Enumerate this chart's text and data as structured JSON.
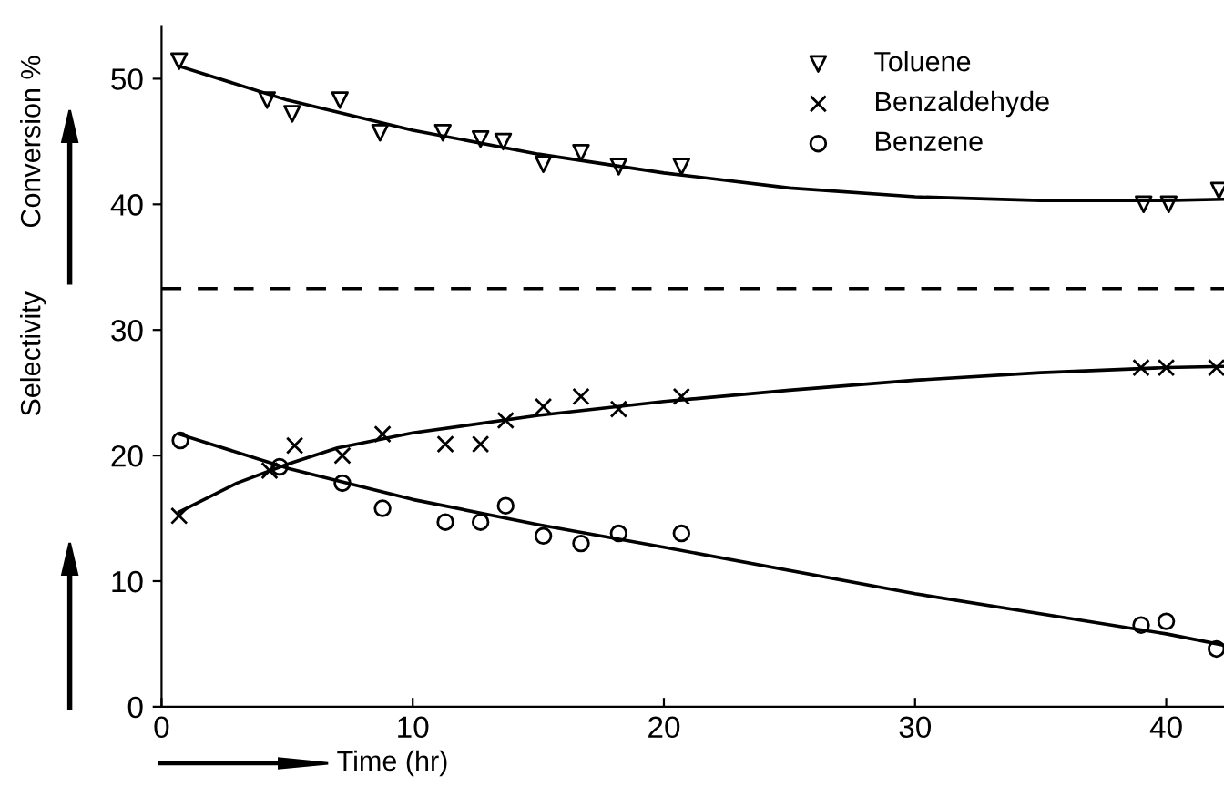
{
  "chart_data": {
    "type": "scatter",
    "xlabel": "Time (hr)",
    "ylabel": "Selectivity",
    "annotations": [
      "Conversion %"
    ],
    "xlim": [
      0,
      42.3
    ],
    "ylim": [
      0,
      54.2
    ],
    "xticks": [
      0,
      10,
      20,
      30,
      40
    ],
    "yticks": [
      0,
      10,
      20,
      30,
      40,
      50
    ],
    "grid": false,
    "legend": "top right",
    "ref_lines": [
      {
        "axis": "y",
        "value": 33.3,
        "color": "#000000",
        "line_style": "dashed"
      }
    ],
    "series": [
      {
        "name": "Toluene",
        "marker": "triangle",
        "color": "#000000",
        "x": [
          0.7,
          4.2,
          5.2,
          7.1,
          8.7,
          11.2,
          12.7,
          13.6,
          15.2,
          16.7,
          18.2,
          20.7,
          39.1,
          40.1,
          42.1
        ],
        "values": [
          51.4,
          48.3,
          47.2,
          48.3,
          45.7,
          45.7,
          45.2,
          45.0,
          43.2,
          44.1,
          43.0,
          43.0,
          40.0,
          40.0,
          41.1
        ]
      },
      {
        "name": "Benzaldehyde",
        "marker": "cross",
        "color": "#000000",
        "x": [
          0.7,
          4.3,
          5.3,
          7.2,
          8.8,
          11.3,
          12.7,
          13.7,
          15.2,
          16.7,
          18.2,
          20.7,
          39.0,
          40.0,
          42.0
        ],
        "values": [
          15.2,
          18.8,
          20.8,
          20.0,
          21.7,
          20.9,
          20.9,
          22.8,
          23.9,
          24.7,
          23.7,
          24.7,
          27.0,
          27.0,
          27.0
        ]
      },
      {
        "name": "Benzene",
        "marker": "circle",
        "color": "#000000",
        "x": [
          0.75,
          4.7,
          7.2,
          8.8,
          11.3,
          12.7,
          13.7,
          15.2,
          16.7,
          18.2,
          20.7,
          39.0,
          40.0,
          42.0
        ],
        "values": [
          21.2,
          19.1,
          17.8,
          15.8,
          14.7,
          14.7,
          16.0,
          13.6,
          13.0,
          13.8,
          13.8,
          6.5,
          6.8,
          4.6
        ]
      },
      {
        "type": "line",
        "marker": "none",
        "line_style": "solid",
        "color": "#000000",
        "x": [
          0.7,
          5,
          10,
          15,
          20,
          25,
          30,
          35,
          40,
          42.3
        ],
        "values": [
          51,
          48.3,
          45.9,
          44,
          42.5,
          41.3,
          40.6,
          40.3,
          40.3,
          40.4
        ]
      },
      {
        "type": "line",
        "marker": "none",
        "line_style": "solid",
        "color": "#000000",
        "x": [
          0.7,
          3,
          5,
          7,
          10,
          15,
          20,
          25,
          30,
          35,
          40,
          42.3
        ],
        "values": [
          15.5,
          17.8,
          19.3,
          20.6,
          21.8,
          23.2,
          24.3,
          25.2,
          26,
          26.6,
          27,
          27.1
        ]
      },
      {
        "type": "line",
        "marker": "none",
        "line_style": "solid",
        "color": "#000000",
        "x": [
          0.7,
          5,
          10,
          15,
          20,
          30,
          40,
          42.3
        ],
        "values": [
          21.7,
          19,
          16.5,
          14.5,
          12.7,
          9,
          5.8,
          4.9
        ]
      }
    ]
  }
}
